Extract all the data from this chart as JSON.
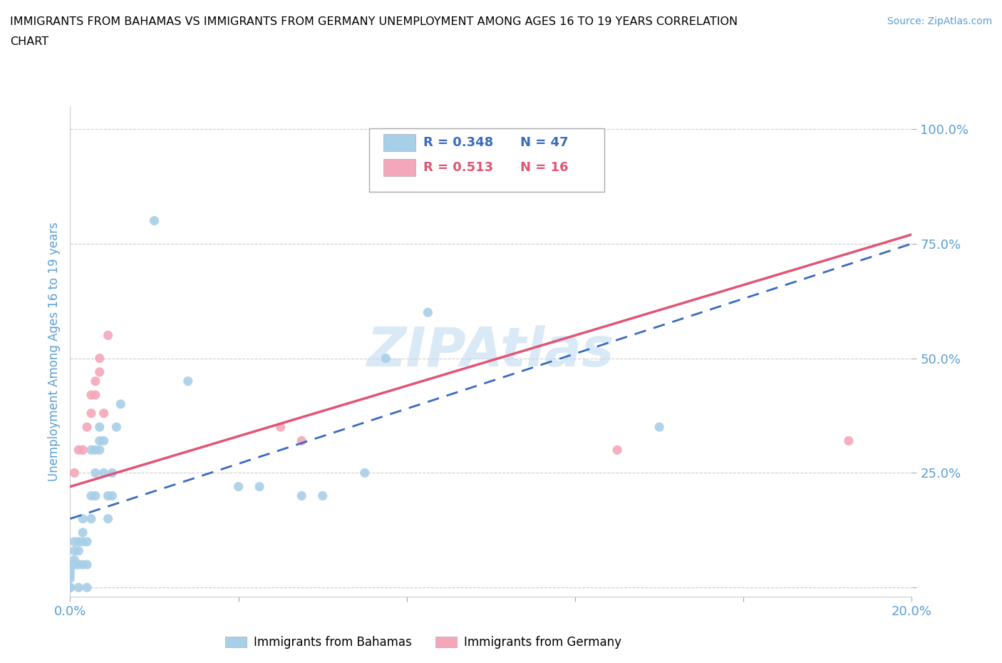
{
  "title_line1": "IMMIGRANTS FROM BAHAMAS VS IMMIGRANTS FROM GERMANY UNEMPLOYMENT AMONG AGES 16 TO 19 YEARS CORRELATION",
  "title_line2": "CHART",
  "source": "Source: ZipAtlas.com",
  "ylabel": "Unemployment Among Ages 16 to 19 years",
  "xlim": [
    0.0,
    0.2
  ],
  "ylim": [
    -0.02,
    1.05
  ],
  "yticks": [
    0.0,
    0.25,
    0.5,
    0.75,
    1.0
  ],
  "ytick_labels": [
    "",
    "25.0%",
    "50.0%",
    "75.0%",
    "100.0%"
  ],
  "xticks": [
    0.0,
    0.04,
    0.08,
    0.12,
    0.16,
    0.2
  ],
  "xtick_labels": [
    "0.0%",
    "",
    "",
    "",
    "",
    "20.0%"
  ],
  "legend_R1": "R = 0.348",
  "legend_N1": "N = 47",
  "legend_R2": "R = 0.513",
  "legend_N2": "N = 16",
  "bahamas_color": "#a8cfe8",
  "germany_color": "#f4a7b9",
  "bahamas_line_color": "#3a6bbf",
  "germany_line_color": "#e05575",
  "background_color": "#ffffff",
  "grid_color": "#cccccc",
  "title_color": "#000000",
  "axis_label_color": "#5a9fd4",
  "tick_color": "#5a9fd4",
  "bahamas_scatter": [
    [
      0.0,
      0.0
    ],
    [
      0.0,
      0.0
    ],
    [
      0.0,
      0.02
    ],
    [
      0.0,
      0.03
    ],
    [
      0.0,
      0.04
    ],
    [
      0.001,
      0.05
    ],
    [
      0.001,
      0.06
    ],
    [
      0.001,
      0.08
    ],
    [
      0.001,
      0.1
    ],
    [
      0.002,
      0.0
    ],
    [
      0.002,
      0.05
    ],
    [
      0.002,
      0.08
    ],
    [
      0.002,
      0.1
    ],
    [
      0.003,
      0.05
    ],
    [
      0.003,
      0.1
    ],
    [
      0.003,
      0.12
    ],
    [
      0.003,
      0.15
    ],
    [
      0.004,
      0.0
    ],
    [
      0.004,
      0.05
    ],
    [
      0.004,
      0.1
    ],
    [
      0.005,
      0.15
    ],
    [
      0.005,
      0.2
    ],
    [
      0.005,
      0.3
    ],
    [
      0.006,
      0.2
    ],
    [
      0.006,
      0.25
    ],
    [
      0.006,
      0.3
    ],
    [
      0.007,
      0.3
    ],
    [
      0.007,
      0.32
    ],
    [
      0.007,
      0.35
    ],
    [
      0.008,
      0.25
    ],
    [
      0.008,
      0.32
    ],
    [
      0.009,
      0.15
    ],
    [
      0.009,
      0.2
    ],
    [
      0.01,
      0.2
    ],
    [
      0.01,
      0.25
    ],
    [
      0.011,
      0.35
    ],
    [
      0.012,
      0.4
    ],
    [
      0.02,
      0.8
    ],
    [
      0.028,
      0.45
    ],
    [
      0.04,
      0.22
    ],
    [
      0.045,
      0.22
    ],
    [
      0.055,
      0.2
    ],
    [
      0.06,
      0.2
    ],
    [
      0.07,
      0.25
    ],
    [
      0.075,
      0.5
    ],
    [
      0.085,
      0.6
    ],
    [
      0.14,
      0.35
    ]
  ],
  "germany_scatter": [
    [
      0.001,
      0.25
    ],
    [
      0.002,
      0.3
    ],
    [
      0.003,
      0.3
    ],
    [
      0.004,
      0.35
    ],
    [
      0.005,
      0.38
    ],
    [
      0.005,
      0.42
    ],
    [
      0.006,
      0.42
    ],
    [
      0.006,
      0.45
    ],
    [
      0.007,
      0.47
    ],
    [
      0.007,
      0.5
    ],
    [
      0.008,
      0.38
    ],
    [
      0.009,
      0.55
    ],
    [
      0.05,
      0.35
    ],
    [
      0.055,
      0.32
    ],
    [
      0.13,
      0.3
    ],
    [
      0.185,
      0.32
    ]
  ],
  "germany_fit_x": [
    0.0,
    0.2
  ],
  "germany_fit_y": [
    0.22,
    0.77
  ],
  "bahamas_fit_x": [
    0.0,
    0.2
  ],
  "bahamas_fit_y": [
    0.15,
    0.75
  ]
}
